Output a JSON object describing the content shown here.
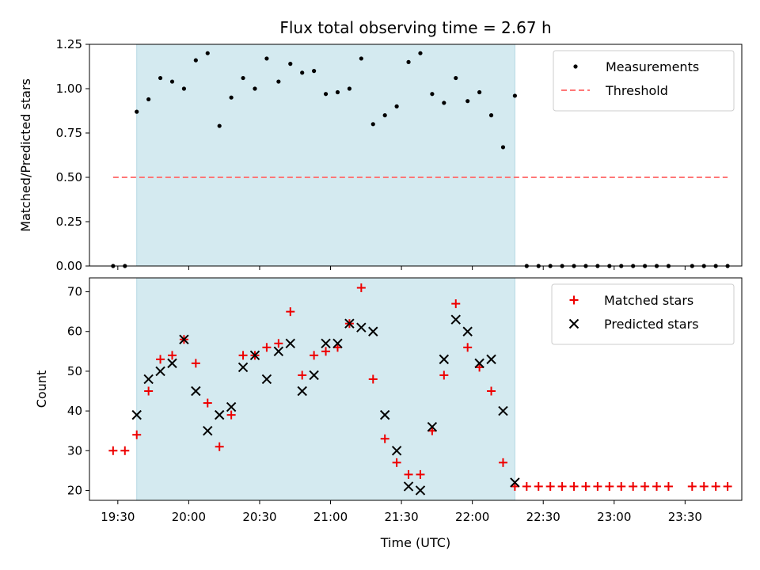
{
  "chart_data": [
    {
      "type": "scatter",
      "title": "Flux total observing time = 2.67 h",
      "ylabel": "Matched/Predicted stars",
      "xlabel": "",
      "xlim": [
        "19:18",
        "23:54"
      ],
      "ylim": [
        0,
        1.25
      ],
      "yticks": [
        "0.00",
        "0.25",
        "0.50",
        "0.75",
        "1.00",
        "1.25"
      ],
      "shaded_region": {
        "start": "19:38",
        "end": "22:18",
        "color": "#d4eaf0"
      },
      "legend_position": "top-right",
      "grid": false,
      "series": [
        {
          "name": "Measurements",
          "color": "#000000",
          "marker": "dot",
          "x": [
            "19:28",
            "19:33",
            "19:38",
            "19:43",
            "19:48",
            "19:53",
            "19:58",
            "20:03",
            "20:08",
            "20:13",
            "20:18",
            "20:23",
            "20:28",
            "20:33",
            "20:38",
            "20:43",
            "20:48",
            "20:53",
            "20:58",
            "21:03",
            "21:08",
            "21:13",
            "21:18",
            "21:23",
            "21:28",
            "21:33",
            "21:38",
            "21:43",
            "21:48",
            "21:53",
            "21:58",
            "22:03",
            "22:08",
            "22:13",
            "22:18",
            "22:23",
            "22:28",
            "22:33",
            "22:38",
            "22:43",
            "22:48",
            "22:53",
            "22:58",
            "23:03",
            "23:08",
            "23:13",
            "23:18",
            "23:23",
            "23:33",
            "23:38",
            "23:43",
            "23:48"
          ],
          "y": [
            0,
            0,
            0.87,
            0.94,
            1.06,
            1.04,
            1.0,
            1.16,
            1.2,
            0.79,
            0.95,
            1.06,
            1.0,
            1.17,
            1.04,
            1.14,
            1.09,
            1.1,
            0.97,
            0.98,
            1.0,
            1.17,
            0.8,
            0.85,
            0.9,
            1.15,
            1.2,
            0.97,
            0.92,
            1.06,
            0.93,
            0.98,
            0.85,
            0.67,
            0.96,
            0,
            0,
            0,
            0,
            0,
            0,
            0,
            0,
            0,
            0,
            0,
            0,
            0,
            0,
            0,
            0,
            0
          ]
        },
        {
          "name": "Threshold",
          "color": "#ff7777",
          "style": "dashed",
          "x": [
            "19:28",
            "23:48"
          ],
          "y": [
            0.5,
            0.5
          ]
        }
      ]
    },
    {
      "type": "scatter",
      "title": "",
      "ylabel": "Count",
      "xlabel": "Time (UTC)",
      "xlim": [
        "19:18",
        "23:54"
      ],
      "ylim": [
        17.5,
        73.5
      ],
      "yticks": [
        "20",
        "30",
        "40",
        "50",
        "60",
        "70"
      ],
      "xticks": [
        "19:30",
        "20:00",
        "20:30",
        "21:00",
        "21:30",
        "22:00",
        "22:30",
        "23:00",
        "23:30"
      ],
      "shaded_region": {
        "start": "19:38",
        "end": "22:18",
        "color": "#d4eaf0"
      },
      "legend_position": "top-right",
      "grid": false,
      "series": [
        {
          "name": "Matched stars",
          "color": "#ee0000",
          "marker": "plus",
          "x": [
            "19:28",
            "19:33",
            "19:38",
            "19:43",
            "19:48",
            "19:53",
            "19:58",
            "20:03",
            "20:08",
            "20:13",
            "20:18",
            "20:23",
            "20:28",
            "20:33",
            "20:38",
            "20:43",
            "20:48",
            "20:53",
            "20:58",
            "21:03",
            "21:08",
            "21:13",
            "21:18",
            "21:23",
            "21:28",
            "21:33",
            "21:38",
            "21:43",
            "21:48",
            "21:53",
            "21:58",
            "22:03",
            "22:08",
            "22:13",
            "22:18",
            "22:23",
            "22:28",
            "22:33",
            "22:38",
            "22:43",
            "22:48",
            "22:53",
            "22:58",
            "23:03",
            "23:08",
            "23:13",
            "23:18",
            "23:23",
            "23:33",
            "23:38",
            "23:43",
            "23:48"
          ],
          "y": [
            30,
            30,
            34,
            45,
            53,
            54,
            58,
            52,
            42,
            31,
            39,
            54,
            54,
            56,
            57,
            65,
            49,
            54,
            55,
            56,
            62,
            71,
            48,
            33,
            27,
            24,
            24,
            35,
            49,
            67,
            56,
            51,
            45,
            27,
            21,
            21,
            21,
            21,
            21,
            21,
            21,
            21,
            21,
            21,
            21,
            21,
            21,
            21,
            21,
            21,
            21,
            21
          ]
        },
        {
          "name": "Predicted stars",
          "color": "#000000",
          "marker": "x",
          "x": [
            "19:38",
            "19:43",
            "19:48",
            "19:53",
            "19:58",
            "20:03",
            "20:08",
            "20:13",
            "20:18",
            "20:23",
            "20:28",
            "20:33",
            "20:38",
            "20:43",
            "20:48",
            "20:53",
            "20:58",
            "21:03",
            "21:08",
            "21:13",
            "21:18",
            "21:23",
            "21:28",
            "21:33",
            "21:38",
            "21:43",
            "21:48",
            "21:53",
            "21:58",
            "22:03",
            "22:08",
            "22:13",
            "22:18"
          ],
          "y": [
            39,
            48,
            50,
            52,
            58,
            45,
            35,
            39,
            41,
            51,
            54,
            48,
            55,
            57,
            45,
            49,
            57,
            57,
            62,
            61,
            60,
            39,
            30,
            21,
            20,
            36,
            53,
            63,
            60,
            52,
            53,
            40,
            22
          ]
        }
      ]
    }
  ]
}
